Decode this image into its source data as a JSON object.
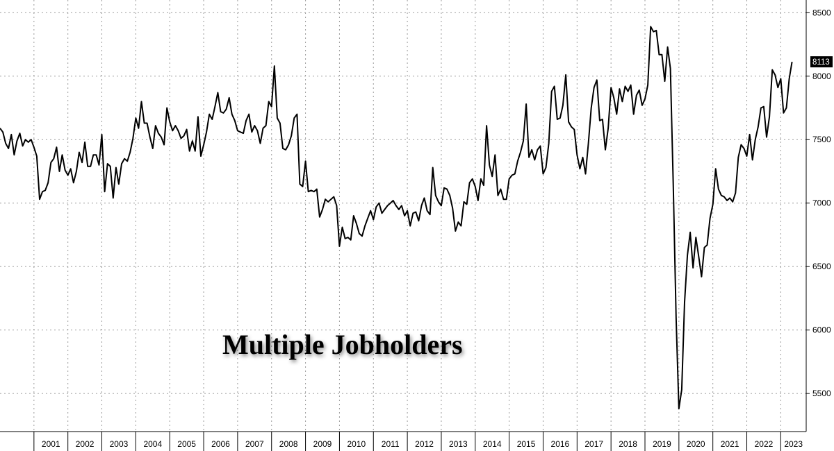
{
  "chart_data": {
    "type": "line",
    "title": "Multiple Jobholders",
    "xlabel": "",
    "ylabel": "",
    "x_tick_labels": [
      "2001",
      "2002",
      "2003",
      "2004",
      "2005",
      "2006",
      "2007",
      "2008",
      "2009",
      "2010",
      "2011",
      "2012",
      "2013",
      "2014",
      "2015",
      "2016",
      "2017",
      "2018",
      "2019",
      "2020",
      "2021",
      "2022",
      "2023"
    ],
    "y_tick_labels": [
      "5500",
      "6000",
      "6500",
      "7000",
      "7500",
      "8000",
      "8500"
    ],
    "y_ticks": [
      5500,
      6000,
      6500,
      7000,
      7500,
      8000,
      8500
    ],
    "ylim": [
      5200,
      8600
    ],
    "xlim": [
      2000.0,
      2023.75
    ],
    "grid": true,
    "y_axis_side": "right",
    "last_value_label": "8113",
    "series": [
      {
        "values": [
          [
            2000.0,
            7590
          ],
          [
            2000.083,
            7560
          ],
          [
            2000.167,
            7470
          ],
          [
            2000.25,
            7430
          ],
          [
            2000.333,
            7540
          ],
          [
            2000.417,
            7380
          ],
          [
            2000.5,
            7490
          ],
          [
            2000.583,
            7550
          ],
          [
            2000.667,
            7450
          ],
          [
            2000.75,
            7500
          ],
          [
            2000.833,
            7480
          ],
          [
            2000.917,
            7500
          ],
          [
            2001.0,
            7440
          ],
          [
            2001.083,
            7370
          ],
          [
            2001.167,
            7030
          ],
          [
            2001.25,
            7090
          ],
          [
            2001.333,
            7100
          ],
          [
            2001.417,
            7160
          ],
          [
            2001.5,
            7320
          ],
          [
            2001.583,
            7350
          ],
          [
            2001.667,
            7440
          ],
          [
            2001.75,
            7250
          ],
          [
            2001.833,
            7380
          ],
          [
            2001.917,
            7260
          ],
          [
            2002.0,
            7220
          ],
          [
            2002.083,
            7270
          ],
          [
            2002.167,
            7160
          ],
          [
            2002.25,
            7250
          ],
          [
            2002.333,
            7400
          ],
          [
            2002.417,
            7320
          ],
          [
            2002.5,
            7480
          ],
          [
            2002.583,
            7290
          ],
          [
            2002.667,
            7290
          ],
          [
            2002.75,
            7380
          ],
          [
            2002.833,
            7380
          ],
          [
            2002.917,
            7300
          ],
          [
            2003.0,
            7540
          ],
          [
            2003.083,
            7090
          ],
          [
            2003.167,
            7310
          ],
          [
            2003.25,
            7290
          ],
          [
            2003.333,
            7040
          ],
          [
            2003.417,
            7280
          ],
          [
            2003.5,
            7150
          ],
          [
            2003.583,
            7310
          ],
          [
            2003.667,
            7350
          ],
          [
            2003.75,
            7330
          ],
          [
            2003.833,
            7400
          ],
          [
            2003.917,
            7510
          ],
          [
            2004.0,
            7670
          ],
          [
            2004.083,
            7590
          ],
          [
            2004.167,
            7800
          ],
          [
            2004.25,
            7630
          ],
          [
            2004.333,
            7630
          ],
          [
            2004.417,
            7520
          ],
          [
            2004.5,
            7430
          ],
          [
            2004.583,
            7610
          ],
          [
            2004.667,
            7550
          ],
          [
            2004.75,
            7520
          ],
          [
            2004.833,
            7460
          ],
          [
            2004.917,
            7750
          ],
          [
            2005.0,
            7640
          ],
          [
            2005.083,
            7570
          ],
          [
            2005.167,
            7610
          ],
          [
            2005.25,
            7570
          ],
          [
            2005.333,
            7510
          ],
          [
            2005.417,
            7530
          ],
          [
            2005.5,
            7580
          ],
          [
            2005.583,
            7410
          ],
          [
            2005.667,
            7490
          ],
          [
            2005.75,
            7410
          ],
          [
            2005.833,
            7680
          ],
          [
            2005.917,
            7370
          ],
          [
            2006.0,
            7460
          ],
          [
            2006.083,
            7560
          ],
          [
            2006.167,
            7700
          ],
          [
            2006.25,
            7660
          ],
          [
            2006.333,
            7760
          ],
          [
            2006.417,
            7870
          ],
          [
            2006.5,
            7720
          ],
          [
            2006.583,
            7710
          ],
          [
            2006.667,
            7740
          ],
          [
            2006.75,
            7830
          ],
          [
            2006.833,
            7700
          ],
          [
            2006.917,
            7650
          ],
          [
            2007.0,
            7570
          ],
          [
            2007.083,
            7560
          ],
          [
            2007.167,
            7550
          ],
          [
            2007.25,
            7650
          ],
          [
            2007.333,
            7700
          ],
          [
            2007.417,
            7560
          ],
          [
            2007.5,
            7610
          ],
          [
            2007.583,
            7570
          ],
          [
            2007.667,
            7470
          ],
          [
            2007.75,
            7590
          ],
          [
            2007.833,
            7610
          ],
          [
            2007.917,
            7800
          ],
          [
            2008.0,
            7760
          ],
          [
            2008.083,
            8080
          ],
          [
            2008.167,
            7670
          ],
          [
            2008.25,
            7630
          ],
          [
            2008.333,
            7430
          ],
          [
            2008.417,
            7420
          ],
          [
            2008.5,
            7460
          ],
          [
            2008.583,
            7530
          ],
          [
            2008.667,
            7670
          ],
          [
            2008.75,
            7700
          ],
          [
            2008.833,
            7150
          ],
          [
            2008.917,
            7130
          ],
          [
            2009.0,
            7330
          ],
          [
            2009.083,
            7090
          ],
          [
            2009.167,
            7100
          ],
          [
            2009.25,
            7090
          ],
          [
            2009.333,
            7110
          ],
          [
            2009.417,
            6890
          ],
          [
            2009.5,
            6950
          ],
          [
            2009.583,
            7030
          ],
          [
            2009.667,
            7010
          ],
          [
            2009.75,
            7030
          ],
          [
            2009.833,
            7050
          ],
          [
            2009.917,
            6980
          ],
          [
            2010.0,
            6660
          ],
          [
            2010.083,
            6810
          ],
          [
            2010.167,
            6720
          ],
          [
            2010.25,
            6730
          ],
          [
            2010.333,
            6710
          ],
          [
            2010.417,
            6900
          ],
          [
            2010.5,
            6840
          ],
          [
            2010.583,
            6760
          ],
          [
            2010.667,
            6740
          ],
          [
            2010.75,
            6820
          ],
          [
            2010.833,
            6880
          ],
          [
            2010.917,
            6940
          ],
          [
            2011.0,
            6870
          ],
          [
            2011.083,
            6970
          ],
          [
            2011.167,
            7000
          ],
          [
            2011.25,
            6920
          ],
          [
            2011.333,
            6950
          ],
          [
            2011.417,
            6980
          ],
          [
            2011.5,
            7000
          ],
          [
            2011.583,
            7020
          ],
          [
            2011.667,
            6980
          ],
          [
            2011.75,
            6950
          ],
          [
            2011.833,
            6980
          ],
          [
            2011.917,
            6900
          ],
          [
            2012.0,
            6940
          ],
          [
            2012.083,
            6820
          ],
          [
            2012.167,
            6920
          ],
          [
            2012.25,
            6930
          ],
          [
            2012.333,
            6860
          ],
          [
            2012.417,
            6980
          ],
          [
            2012.5,
            7040
          ],
          [
            2012.583,
            6940
          ],
          [
            2012.667,
            6910
          ],
          [
            2012.75,
            7280
          ],
          [
            2012.833,
            7060
          ],
          [
            2012.917,
            7010
          ],
          [
            2013.0,
            6980
          ],
          [
            2013.083,
            7120
          ],
          [
            2013.167,
            7110
          ],
          [
            2013.25,
            7060
          ],
          [
            2013.333,
            6960
          ],
          [
            2013.417,
            6780
          ],
          [
            2013.5,
            6850
          ],
          [
            2013.583,
            6820
          ],
          [
            2013.667,
            7010
          ],
          [
            2013.75,
            6990
          ],
          [
            2013.833,
            7160
          ],
          [
            2013.917,
            7190
          ],
          [
            2014.0,
            7130
          ],
          [
            2014.083,
            7020
          ],
          [
            2014.167,
            7190
          ],
          [
            2014.25,
            7140
          ],
          [
            2014.333,
            7610
          ],
          [
            2014.417,
            7300
          ],
          [
            2014.5,
            7210
          ],
          [
            2014.583,
            7380
          ],
          [
            2014.667,
            7060
          ],
          [
            2014.75,
            7110
          ],
          [
            2014.833,
            7030
          ],
          [
            2014.917,
            7030
          ],
          [
            2015.0,
            7190
          ],
          [
            2015.083,
            7220
          ],
          [
            2015.167,
            7230
          ],
          [
            2015.25,
            7330
          ],
          [
            2015.333,
            7400
          ],
          [
            2015.417,
            7490
          ],
          [
            2015.5,
            7780
          ],
          [
            2015.583,
            7360
          ],
          [
            2015.667,
            7420
          ],
          [
            2015.75,
            7340
          ],
          [
            2015.833,
            7420
          ],
          [
            2015.917,
            7450
          ],
          [
            2016.0,
            7230
          ],
          [
            2016.083,
            7280
          ],
          [
            2016.167,
            7470
          ],
          [
            2016.25,
            7880
          ],
          [
            2016.333,
            7920
          ],
          [
            2016.417,
            7660
          ],
          [
            2016.5,
            7670
          ],
          [
            2016.583,
            7770
          ],
          [
            2016.667,
            8010
          ],
          [
            2016.75,
            7640
          ],
          [
            2016.833,
            7600
          ],
          [
            2016.917,
            7580
          ],
          [
            2017.0,
            7380
          ],
          [
            2017.083,
            7270
          ],
          [
            2017.167,
            7360
          ],
          [
            2017.25,
            7230
          ],
          [
            2017.333,
            7470
          ],
          [
            2017.417,
            7750
          ],
          [
            2017.5,
            7910
          ],
          [
            2017.583,
            7970
          ],
          [
            2017.667,
            7650
          ],
          [
            2017.75,
            7660
          ],
          [
            2017.833,
            7420
          ],
          [
            2017.917,
            7590
          ],
          [
            2018.0,
            7910
          ],
          [
            2018.083,
            7830
          ],
          [
            2018.167,
            7700
          ],
          [
            2018.25,
            7900
          ],
          [
            2018.333,
            7800
          ],
          [
            2018.417,
            7920
          ],
          [
            2018.5,
            7880
          ],
          [
            2018.583,
            7930
          ],
          [
            2018.667,
            7700
          ],
          [
            2018.75,
            7850
          ],
          [
            2018.833,
            7890
          ],
          [
            2018.917,
            7770
          ],
          [
            2019.0,
            7820
          ],
          [
            2019.083,
            7930
          ],
          [
            2019.167,
            8390
          ],
          [
            2019.25,
            8350
          ],
          [
            2019.333,
            8360
          ],
          [
            2019.417,
            8170
          ],
          [
            2019.5,
            8170
          ],
          [
            2019.583,
            7960
          ],
          [
            2019.667,
            8230
          ],
          [
            2019.75,
            8060
          ],
          [
            2019.833,
            7150
          ],
          [
            2019.917,
            6100
          ],
          [
            2020.0,
            5380
          ],
          [
            2020.083,
            5530
          ],
          [
            2020.167,
            6220
          ],
          [
            2020.25,
            6590
          ],
          [
            2020.333,
            6770
          ],
          [
            2020.417,
            6490
          ],
          [
            2020.5,
            6730
          ],
          [
            2020.583,
            6580
          ],
          [
            2020.667,
            6420
          ],
          [
            2020.75,
            6650
          ],
          [
            2020.833,
            6670
          ],
          [
            2020.917,
            6880
          ],
          [
            2021.0,
            6990
          ],
          [
            2021.083,
            7270
          ],
          [
            2021.167,
            7110
          ],
          [
            2021.25,
            7060
          ],
          [
            2021.333,
            7050
          ],
          [
            2021.417,
            7020
          ],
          [
            2021.5,
            7040
          ],
          [
            2021.583,
            7010
          ],
          [
            2021.667,
            7080
          ],
          [
            2021.75,
            7360
          ],
          [
            2021.833,
            7460
          ],
          [
            2021.917,
            7430
          ],
          [
            2022.0,
            7370
          ],
          [
            2022.083,
            7540
          ],
          [
            2022.167,
            7340
          ],
          [
            2022.25,
            7500
          ],
          [
            2022.333,
            7600
          ],
          [
            2022.417,
            7750
          ],
          [
            2022.5,
            7760
          ],
          [
            2022.583,
            7520
          ],
          [
            2022.667,
            7680
          ],
          [
            2022.75,
            8050
          ],
          [
            2022.833,
            8010
          ],
          [
            2022.917,
            7910
          ],
          [
            2023.0,
            7980
          ],
          [
            2023.083,
            7710
          ],
          [
            2023.167,
            7750
          ],
          [
            2023.25,
            7980
          ],
          [
            2023.333,
            8113
          ]
        ]
      }
    ]
  }
}
